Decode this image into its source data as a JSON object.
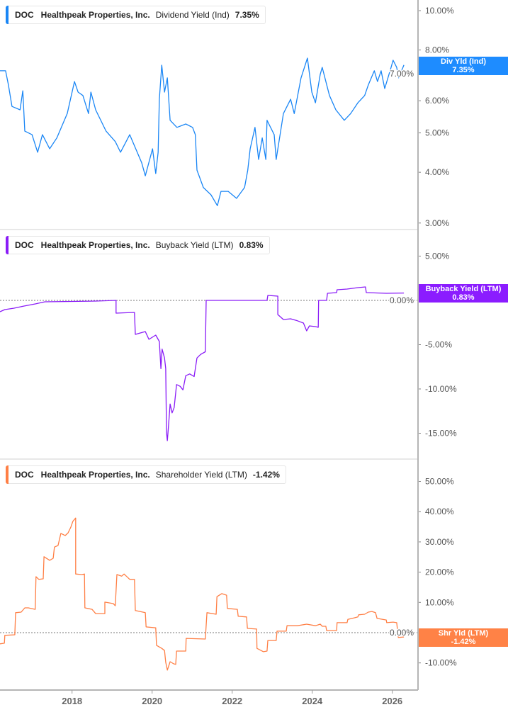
{
  "colors": {
    "dividend": "#1a86f5",
    "buyback": "#8a1cf7",
    "shareholder": "#ff7f45",
    "axis": "#b5b5b5",
    "tick_text": "#555555"
  },
  "chart_data": [
    {
      "type": "line",
      "legend": {
        "ticker": "DOC",
        "company": "Healthpeak Properties, Inc.",
        "metric": "Dividend Yield (Ind)",
        "value": "7.35%"
      },
      "badge": {
        "label": "Div Yld (Ind)",
        "value": "7.35%"
      },
      "y_scale": "log",
      "ylim": [
        2.9,
        10.5
      ],
      "yticks": [
        {
          "v": 10,
          "label": "10.00%"
        },
        {
          "v": 8,
          "label": "8.00%"
        },
        {
          "v": 7,
          "label": "7.00%"
        },
        {
          "v": 6,
          "label": "6.00%"
        },
        {
          "v": 5,
          "label": "5.00%"
        },
        {
          "v": 4,
          "label": "4.00%"
        },
        {
          "v": 3,
          "label": "3.00%"
        }
      ],
      "zero_line": false,
      "series": [
        {
          "points": [
            [
              2016.2,
              7.11
            ],
            [
              2016.34,
              7.11
            ],
            [
              2016.41,
              6.56
            ],
            [
              2016.5,
              5.81
            ],
            [
              2016.7,
              5.7
            ],
            [
              2016.77,
              6.35
            ],
            [
              2016.82,
              5.05
            ],
            [
              2017.0,
              4.95
            ],
            [
              2017.14,
              4.48
            ],
            [
              2017.26,
              4.95
            ],
            [
              2017.44,
              4.57
            ],
            [
              2017.62,
              4.86
            ],
            [
              2017.88,
              5.58
            ],
            [
              2018.06,
              6.69
            ],
            [
              2018.15,
              6.3
            ],
            [
              2018.27,
              6.18
            ],
            [
              2018.41,
              5.58
            ],
            [
              2018.47,
              6.3
            ],
            [
              2018.59,
              5.7
            ],
            [
              2018.85,
              5.05
            ],
            [
              2019.08,
              4.76
            ],
            [
              2019.21,
              4.48
            ],
            [
              2019.44,
              4.95
            ],
            [
              2019.74,
              4.22
            ],
            [
              2019.83,
              3.92
            ],
            [
              2020.01,
              4.57
            ],
            [
              2020.09,
              3.97
            ],
            [
              2020.15,
              4.48
            ],
            [
              2020.18,
              6.05
            ],
            [
              2020.24,
              7.34
            ],
            [
              2020.31,
              6.3
            ],
            [
              2020.38,
              6.83
            ],
            [
              2020.45,
              5.37
            ],
            [
              2020.62,
              5.16
            ],
            [
              2020.84,
              5.26
            ],
            [
              2021.01,
              5.16
            ],
            [
              2021.08,
              4.95
            ],
            [
              2021.12,
              4.05
            ],
            [
              2021.28,
              3.67
            ],
            [
              2021.47,
              3.52
            ],
            [
              2021.63,
              3.31
            ],
            [
              2021.72,
              3.59
            ],
            [
              2021.9,
              3.59
            ],
            [
              2022.11,
              3.45
            ],
            [
              2022.31,
              3.67
            ],
            [
              2022.39,
              4.05
            ],
            [
              2022.45,
              4.57
            ],
            [
              2022.57,
              5.16
            ],
            [
              2022.66,
              4.3
            ],
            [
              2022.75,
              4.86
            ],
            [
              2022.84,
              4.3
            ],
            [
              2022.87,
              5.37
            ],
            [
              2023.05,
              4.95
            ],
            [
              2023.1,
              4.3
            ],
            [
              2023.28,
              5.58
            ],
            [
              2023.46,
              6.05
            ],
            [
              2023.55,
              5.58
            ],
            [
              2023.72,
              6.83
            ],
            [
              2023.88,
              7.64
            ],
            [
              2023.99,
              6.3
            ],
            [
              2024.08,
              5.93
            ],
            [
              2024.2,
              6.97
            ],
            [
              2024.25,
              7.25
            ],
            [
              2024.43,
              6.18
            ],
            [
              2024.59,
              5.7
            ],
            [
              2024.8,
              5.37
            ],
            [
              2024.96,
              5.58
            ],
            [
              2025.14,
              5.93
            ],
            [
              2025.31,
              6.18
            ],
            [
              2025.4,
              6.56
            ],
            [
              2025.55,
              7.11
            ],
            [
              2025.63,
              6.69
            ],
            [
              2025.72,
              7.11
            ],
            [
              2025.81,
              6.43
            ],
            [
              2025.97,
              7.25
            ],
            [
              2026.02,
              7.55
            ],
            [
              2026.11,
              7.25
            ],
            [
              2026.16,
              6.83
            ],
            [
              2026.29,
              7.35
            ]
          ]
        }
      ]
    },
    {
      "type": "line",
      "legend": {
        "ticker": "DOC",
        "company": "Healthpeak Properties, Inc.",
        "metric": "Buyback Yield (LTM)",
        "value": "0.83%"
      },
      "badge": {
        "label": "Buyback Yield (LTM)",
        "value": "0.83%"
      },
      "y_scale": "linear",
      "ylim": [
        -17,
        7
      ],
      "yticks": [
        {
          "v": 5,
          "label": "5.00%"
        },
        {
          "v": 0,
          "label": "0.00%"
        },
        {
          "v": -5,
          "label": "-5.00%"
        },
        {
          "v": -10,
          "label": "-10.00%"
        },
        {
          "v": -15,
          "label": "-15.00%"
        }
      ],
      "zero_line": true,
      "series": [
        {
          "points": [
            [
              2016.2,
              -1.28
            ],
            [
              2016.32,
              -1.04
            ],
            [
              2016.55,
              -0.88
            ],
            [
              2016.8,
              -0.64
            ],
            [
              2017.08,
              -0.4
            ],
            [
              2017.32,
              -0.16
            ],
            [
              2018.59,
              -0.08
            ],
            [
              2019.1,
              0
            ],
            [
              2019.1,
              -1.44
            ],
            [
              2019.56,
              -1.36
            ],
            [
              2019.58,
              -3.84
            ],
            [
              2019.83,
              -3.52
            ],
            [
              2019.92,
              -4.4
            ],
            [
              2020.09,
              -3.92
            ],
            [
              2020.18,
              -4.64
            ],
            [
              2020.22,
              -7.7
            ],
            [
              2020.25,
              -5.5
            ],
            [
              2020.31,
              -6.5
            ],
            [
              2020.34,
              -7.7
            ],
            [
              2020.36,
              -14.9
            ],
            [
              2020.38,
              -15.84
            ],
            [
              2020.41,
              -14.1
            ],
            [
              2020.45,
              -11.7
            ],
            [
              2020.5,
              -12.7
            ],
            [
              2020.55,
              -12.1
            ],
            [
              2020.61,
              -9.5
            ],
            [
              2020.7,
              -9.7
            ],
            [
              2020.77,
              -10.1
            ],
            [
              2020.84,
              -8.5
            ],
            [
              2020.94,
              -8.3
            ],
            [
              2021.05,
              -8.6
            ],
            [
              2021.12,
              -6.5
            ],
            [
              2021.21,
              -6.1
            ],
            [
              2021.33,
              -5.8
            ],
            [
              2021.35,
              0
            ],
            [
              2022.87,
              0
            ],
            [
              2022.89,
              0.56
            ],
            [
              2023.14,
              0.48
            ],
            [
              2023.14,
              -1.6
            ],
            [
              2023.28,
              -2.16
            ],
            [
              2023.46,
              -2.08
            ],
            [
              2023.63,
              -2.3
            ],
            [
              2023.78,
              -2.56
            ],
            [
              2023.86,
              -3.44
            ],
            [
              2023.93,
              -2.88
            ],
            [
              2024.08,
              -2.96
            ],
            [
              2024.15,
              -3.04
            ],
            [
              2024.16,
              0
            ],
            [
              2024.36,
              0
            ],
            [
              2024.38,
              0.8
            ],
            [
              2024.61,
              0.88
            ],
            [
              2024.62,
              1.2
            ],
            [
              2024.87,
              1.28
            ],
            [
              2025.14,
              1.44
            ],
            [
              2025.33,
              1.52
            ],
            [
              2025.35,
              0.88
            ],
            [
              2025.85,
              0.8
            ],
            [
              2026.29,
              0.83
            ]
          ]
        }
      ]
    },
    {
      "type": "line",
      "legend": {
        "ticker": "DOC",
        "company": "Healthpeak Properties, Inc.",
        "metric": "Shareholder Yield (LTM)",
        "value": "-1.42%"
      },
      "badge": {
        "label": "Shr Yld (LTM)",
        "value": "-1.42%"
      },
      "y_scale": "linear",
      "ylim": [
        -18,
        55
      ],
      "yticks": [
        {
          "v": 50,
          "label": "50.00%"
        },
        {
          "v": 40,
          "label": "40.00%"
        },
        {
          "v": 30,
          "label": "30.00%"
        },
        {
          "v": 20,
          "label": "20.00%"
        },
        {
          "v": 10,
          "label": "10.00%"
        },
        {
          "v": 0,
          "label": "0.00%"
        },
        {
          "v": -10,
          "label": "-10.00%"
        }
      ],
      "zero_line": true,
      "series": [
        {
          "points": [
            [
              2016.2,
              -3.7
            ],
            [
              2016.31,
              -3.5
            ],
            [
              2016.32,
              -0.9
            ],
            [
              2016.57,
              -0.7
            ],
            [
              2016.59,
              6.6
            ],
            [
              2016.73,
              6.8
            ],
            [
              2016.82,
              8.2
            ],
            [
              2016.91,
              8.2
            ],
            [
              2017.08,
              7.7
            ],
            [
              2017.1,
              18.5
            ],
            [
              2017.17,
              17.6
            ],
            [
              2017.28,
              17.8
            ],
            [
              2017.3,
              25.1
            ],
            [
              2017.44,
              23.9
            ],
            [
              2017.53,
              24.6
            ],
            [
              2017.56,
              28.3
            ],
            [
              2017.65,
              28.8
            ],
            [
              2017.72,
              32.8
            ],
            [
              2017.83,
              32.1
            ],
            [
              2017.9,
              33.0
            ],
            [
              2017.97,
              34.9
            ],
            [
              2018.02,
              36.8
            ],
            [
              2018.09,
              37.9
            ],
            [
              2018.09,
              19.4
            ],
            [
              2018.24,
              19.2
            ],
            [
              2018.31,
              19.4
            ],
            [
              2018.32,
              8.2
            ],
            [
              2018.5,
              7.7
            ],
            [
              2018.59,
              6.3
            ],
            [
              2018.82,
              6.3
            ],
            [
              2018.82,
              10.1
            ],
            [
              2019.03,
              9.6
            ],
            [
              2019.08,
              8.9
            ],
            [
              2019.12,
              19.2
            ],
            [
              2019.24,
              18.7
            ],
            [
              2019.3,
              19.4
            ],
            [
              2019.44,
              17.6
            ],
            [
              2019.56,
              17.6
            ],
            [
              2019.58,
              7.3
            ],
            [
              2019.83,
              6.6
            ],
            [
              2019.85,
              1.9
            ],
            [
              2020.09,
              1.6
            ],
            [
              2020.11,
              -4.2
            ],
            [
              2020.24,
              -5.2
            ],
            [
              2020.31,
              -5.9
            ],
            [
              2020.34,
              -9.8
            ],
            [
              2020.38,
              -12.4
            ],
            [
              2020.45,
              -9.6
            ],
            [
              2020.54,
              -10.3
            ],
            [
              2020.59,
              -10.5
            ],
            [
              2020.61,
              -6.1
            ],
            [
              2020.84,
              -6.1
            ],
            [
              2020.85,
              -1.9
            ],
            [
              2021.33,
              -2.1
            ],
            [
              2021.37,
              6.6
            ],
            [
              2021.6,
              6.1
            ],
            [
              2021.62,
              11.9
            ],
            [
              2021.74,
              12.9
            ],
            [
              2021.86,
              12.4
            ],
            [
              2021.88,
              8.0
            ],
            [
              2022.13,
              7.7
            ],
            [
              2022.15,
              5.4
            ],
            [
              2022.36,
              5.2
            ],
            [
              2022.38,
              1.4
            ],
            [
              2022.61,
              1.2
            ],
            [
              2022.62,
              -5.2
            ],
            [
              2022.78,
              -6.3
            ],
            [
              2022.87,
              -6.1
            ],
            [
              2022.89,
              -2.6
            ],
            [
              2023.1,
              -2.6
            ],
            [
              2023.12,
              0.5
            ],
            [
              2023.35,
              0.5
            ],
            [
              2023.37,
              2.3
            ],
            [
              2023.63,
              2.3
            ],
            [
              2023.86,
              2.8
            ],
            [
              2024.08,
              2.3
            ],
            [
              2024.2,
              2.8
            ],
            [
              2024.25,
              2.1
            ],
            [
              2024.34,
              2.1
            ],
            [
              2024.36,
              0.7
            ],
            [
              2024.61,
              0.7
            ],
            [
              2024.62,
              3.3
            ],
            [
              2024.87,
              3.3
            ],
            [
              2024.89,
              4.4
            ],
            [
              2025.05,
              4.9
            ],
            [
              2025.14,
              5.2
            ],
            [
              2025.16,
              5.9
            ],
            [
              2025.31,
              6.1
            ],
            [
              2025.4,
              6.8
            ],
            [
              2025.49,
              7.0
            ],
            [
              2025.58,
              6.6
            ],
            [
              2025.62,
              4.7
            ],
            [
              2025.85,
              4.2
            ],
            [
              2025.86,
              3.3
            ],
            [
              2026.02,
              3.5
            ],
            [
              2026.11,
              3.3
            ],
            [
              2026.15,
              -1.6
            ],
            [
              2026.29,
              -1.42
            ]
          ]
        }
      ]
    }
  ],
  "x_axis": {
    "ticks": [
      {
        "year": 2018,
        "label": "2018"
      },
      {
        "year": 2020,
        "label": "2020"
      },
      {
        "year": 2022,
        "label": "2022"
      },
      {
        "year": 2024,
        "label": "2024"
      },
      {
        "year": 2026,
        "label": "2026"
      }
    ]
  }
}
